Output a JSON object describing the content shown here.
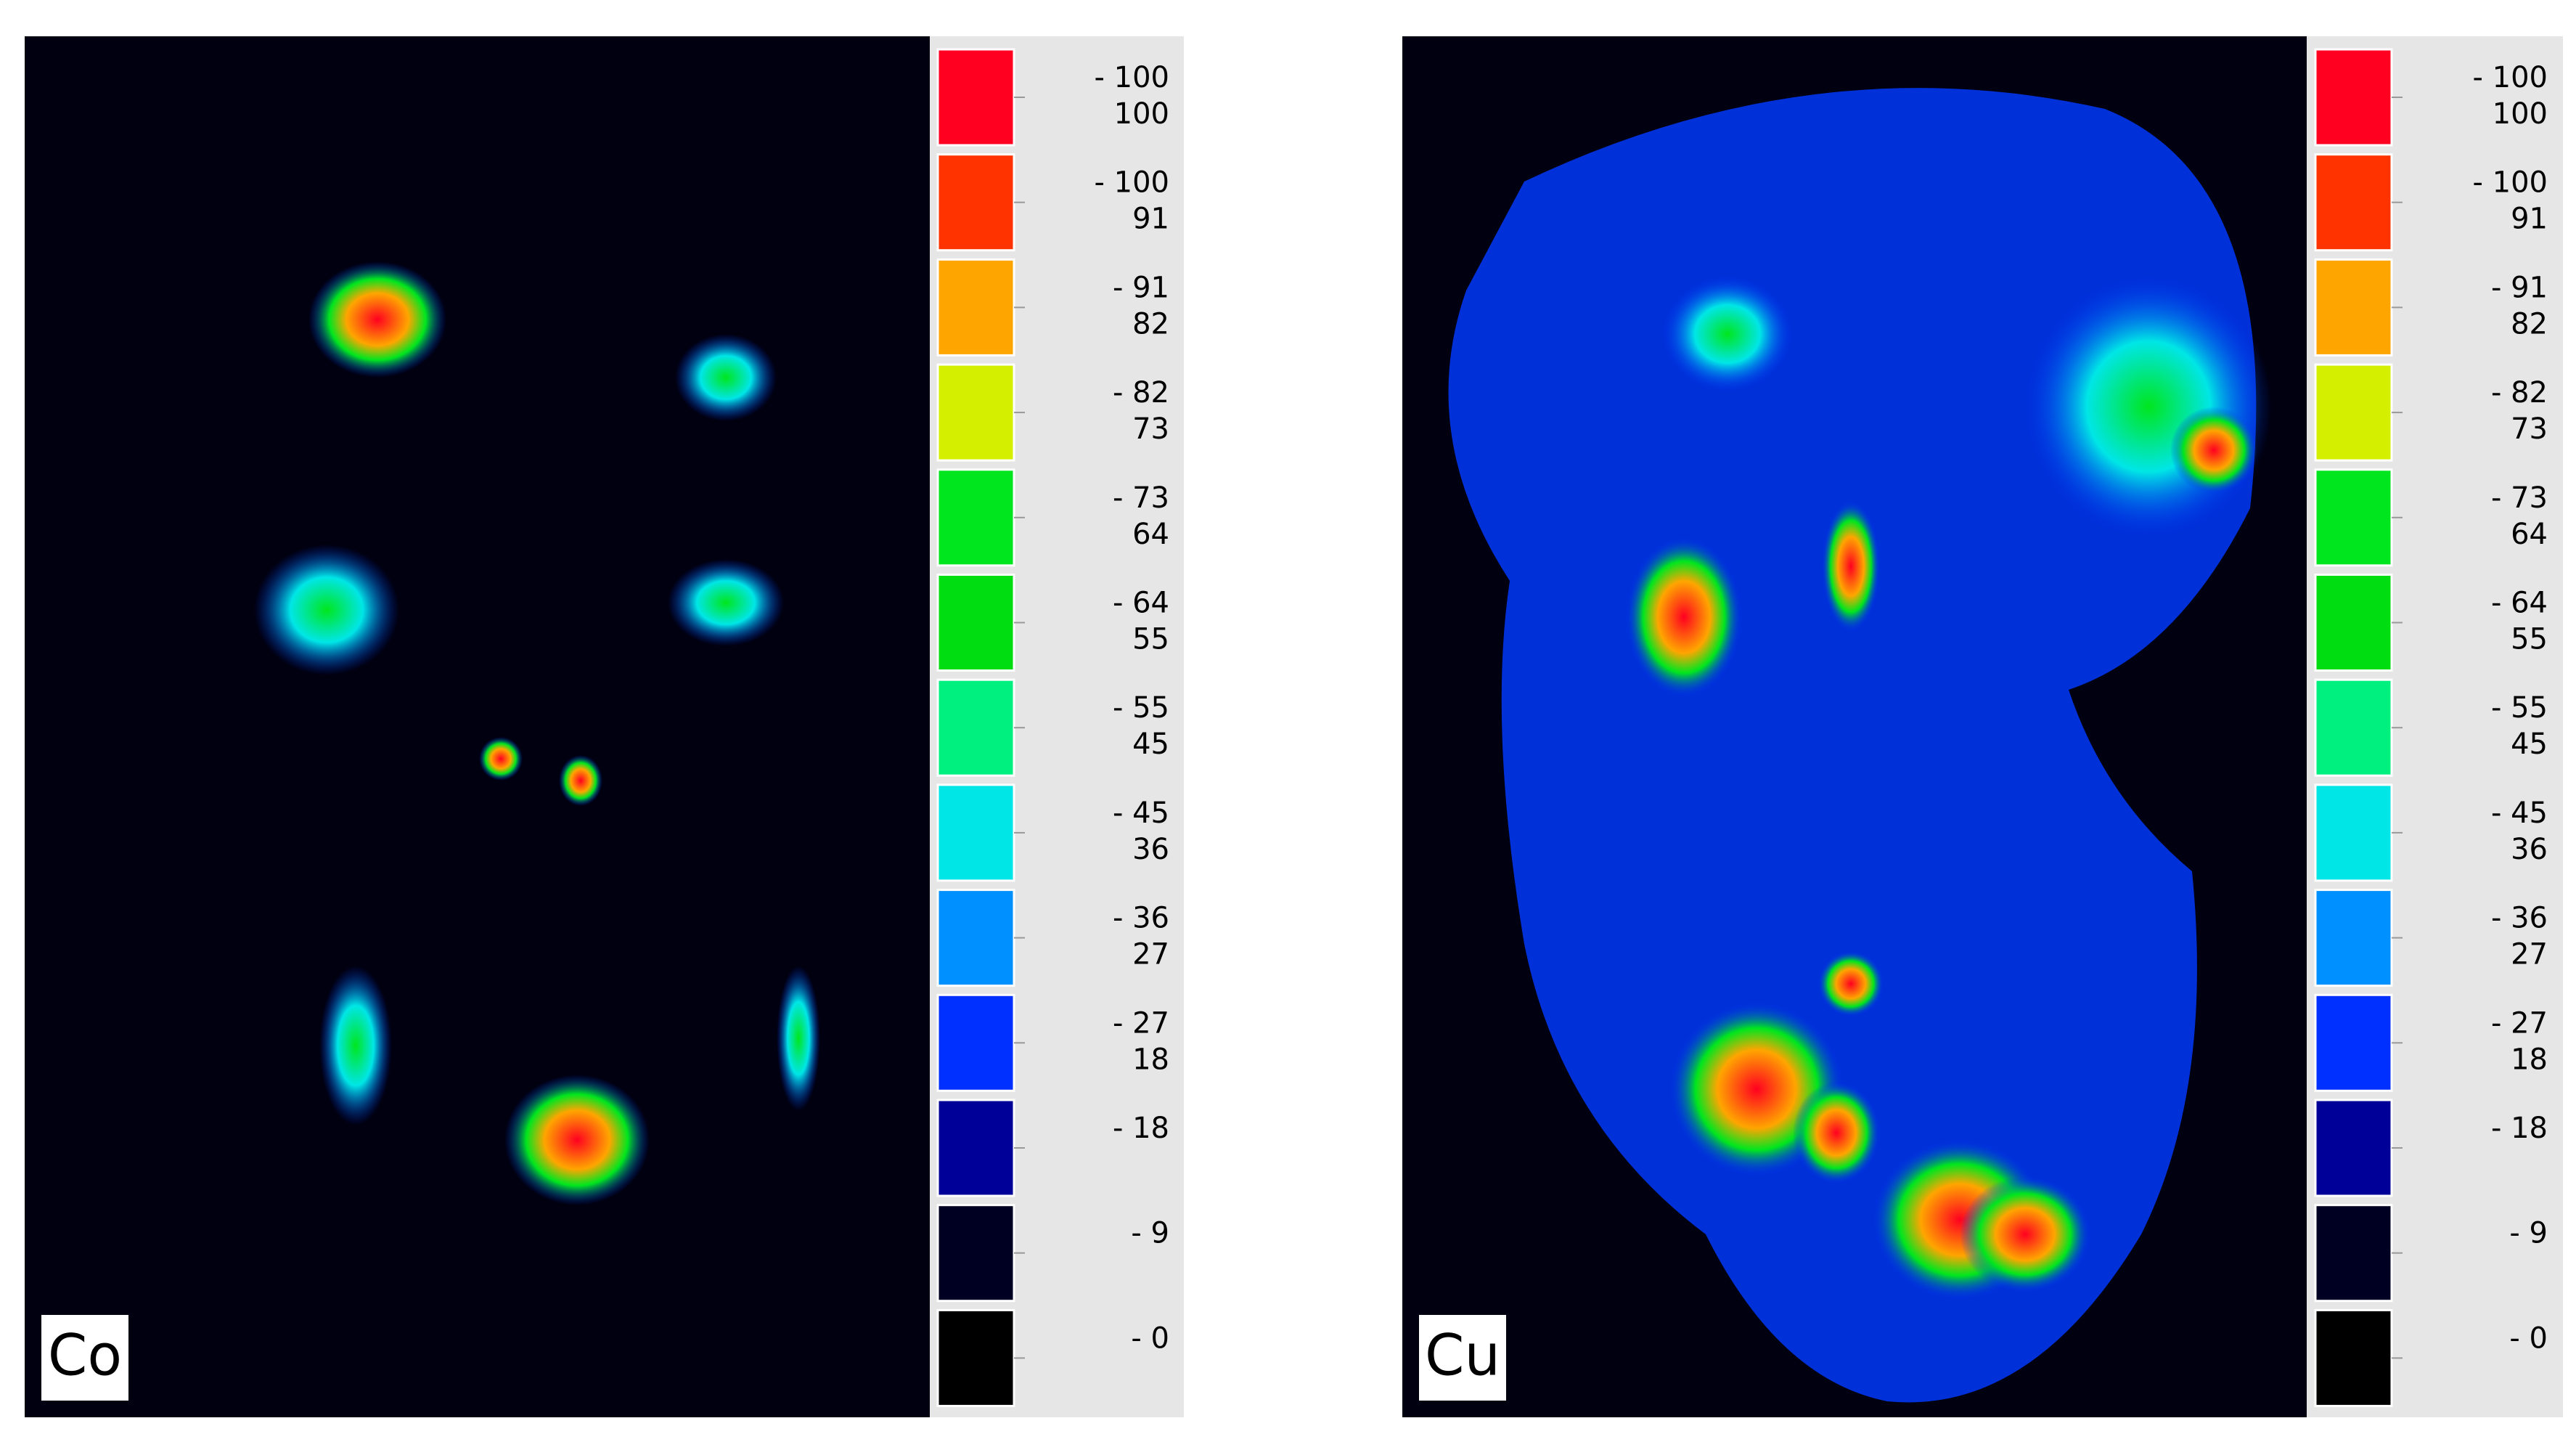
{
  "panels": [
    {
      "label": "Co",
      "legend": [
        {
          "color": "#ff0020",
          "upper": "- 100",
          "lower": "100"
        },
        {
          "color": "#ff3300",
          "upper": "- 100",
          "lower": "91"
        },
        {
          "color": "#ffa500",
          "upper": "- 91",
          "lower": "82"
        },
        {
          "color": "#d4f000",
          "upper": "- 82",
          "lower": "73"
        },
        {
          "color": "#00e61e",
          "upper": "- 73",
          "lower": "64"
        },
        {
          "color": "#00dd10",
          "upper": "- 64",
          "lower": "55"
        },
        {
          "color": "#00f07f",
          "upper": "- 55",
          "lower": "45"
        },
        {
          "color": "#00e6e6",
          "upper": "- 45",
          "lower": "36"
        },
        {
          "color": "#0090ff",
          "upper": "- 36",
          "lower": "27"
        },
        {
          "color": "#0030ff",
          "upper": "- 27",
          "lower": "18"
        },
        {
          "color": "#000099",
          "upper": "- 18"
        },
        {
          "color": "#000022",
          "upper": "- 9"
        },
        {
          "color": "#000000",
          "upper": "- 0"
        }
      ]
    },
    {
      "label": "Cu",
      "legend": [
        {
          "color": "#ff0020",
          "upper": "- 100",
          "lower": "100"
        },
        {
          "color": "#ff3300",
          "upper": "- 100",
          "lower": "91"
        },
        {
          "color": "#ffa500",
          "upper": "- 91",
          "lower": "82"
        },
        {
          "color": "#d4f000",
          "upper": "- 82",
          "lower": "73"
        },
        {
          "color": "#00e61e",
          "upper": "- 73",
          "lower": "64"
        },
        {
          "color": "#00dd10",
          "upper": "- 64",
          "lower": "55"
        },
        {
          "color": "#00f07f",
          "upper": "- 55",
          "lower": "45"
        },
        {
          "color": "#00e6e6",
          "upper": "- 45",
          "lower": "36"
        },
        {
          "color": "#0090ff",
          "upper": "- 36",
          "lower": "27"
        },
        {
          "color": "#0030ff",
          "upper": "- 27",
          "lower": "18"
        },
        {
          "color": "#000099",
          "upper": "- 18"
        },
        {
          "color": "#000022",
          "upper": "- 9"
        },
        {
          "color": "#000000",
          "upper": "- 0"
        }
      ]
    }
  ]
}
